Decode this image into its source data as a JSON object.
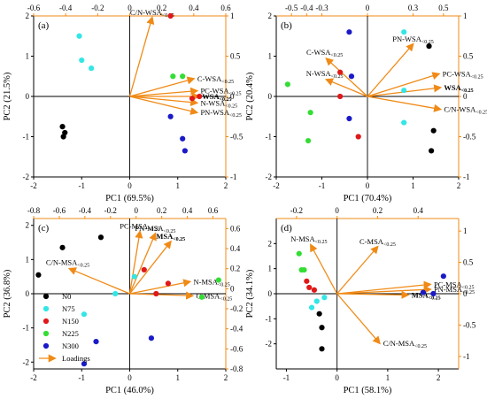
{
  "figure": {
    "colors": {
      "axis": "#000000",
      "loading": "#f08a16",
      "n0": "#000000",
      "n75": "#33e6e6",
      "n150": "#e01818",
      "n225": "#33dd33",
      "n300": "#1a1ac8"
    }
  },
  "chart_data": [
    {
      "type": "scatter",
      "panel_label": "(a)",
      "xlabel": "PC1 (69.5%)",
      "ylabel": "PC2 (21.5%)",
      "xlim": [
        -2,
        2
      ],
      "ylim": [
        -2,
        2
      ],
      "xticks": [
        -2,
        -1,
        0,
        1,
        2
      ],
      "yticks": [
        -2,
        -1,
        0,
        1,
        2
      ],
      "loading_xlim": [
        -0.6,
        0.6
      ],
      "loading_ylim": [
        -1.0,
        1.0
      ],
      "loading_xticks": [
        -0.6,
        -0.4,
        -0.2,
        0.0,
        0.2,
        0.4,
        0.6
      ],
      "loading_yticks": [
        -1.0,
        -0.5,
        0.0,
        0.5,
        1.0
      ],
      "series": [
        {
          "key": "n0",
          "points": [
            [
              -1.4,
              -0.75
            ],
            [
              -1.35,
              -0.9
            ],
            [
              -1.38,
              -1.0
            ]
          ]
        },
        {
          "key": "n75",
          "points": [
            [
              -1.05,
              1.5
            ],
            [
              -1.0,
              0.9
            ],
            [
              -0.8,
              0.7
            ]
          ]
        },
        {
          "key": "n150",
          "points": [
            [
              0.85,
              2.0
            ],
            [
              1.3,
              -0.05
            ],
            [
              1.45,
              0.0
            ]
          ]
        },
        {
          "key": "n225",
          "points": [
            [
              0.9,
              0.5
            ],
            [
              1.1,
              0.5
            ]
          ]
        },
        {
          "key": "n300",
          "points": [
            [
              0.85,
              -0.5
            ],
            [
              1.1,
              -1.05
            ],
            [
              1.15,
              -1.35
            ]
          ]
        }
      ],
      "loadings": [
        {
          "label": "C/N-WSA",
          "sub": "<0.25",
          "bold": false,
          "x": 0.14,
          "y": 0.98
        },
        {
          "label": "C-WSA",
          "sub": "<0.25",
          "bold": false,
          "x": 0.4,
          "y": 0.22
        },
        {
          "label": "PC-WSA",
          "sub": "<0.25",
          "bold": false,
          "x": 0.42,
          "y": 0.07
        },
        {
          "label": "WSA",
          "sub": "<0.25",
          "bold": true,
          "x": 0.43,
          "y": 0.0
        },
        {
          "label": "N-WSA",
          "sub": "<0.25",
          "bold": false,
          "x": 0.42,
          "y": -0.08
        },
        {
          "label": "PN-WSA",
          "sub": "<0.25",
          "bold": false,
          "x": 0.42,
          "y": -0.2
        }
      ]
    },
    {
      "type": "scatter",
      "panel_label": "(b)",
      "xlabel": "PC1 (70.4%)",
      "ylabel": "PC2 (20.4%)",
      "xlim": [
        -2,
        2
      ],
      "ylim": [
        -2,
        2
      ],
      "xticks": [
        -2,
        -1,
        0,
        1,
        2
      ],
      "yticks": [
        -2,
        -1,
        0,
        1,
        2
      ],
      "loading_xlim": [
        -0.6,
        0.6
      ],
      "loading_ylim": [
        -1.0,
        1.0
      ],
      "loading_xticks": [
        -0.5,
        -0.4,
        -0.3,
        0.0,
        0.3,
        0.5
      ],
      "loading_yticks": [
        -1.0,
        -0.5,
        0.0,
        0.5,
        1.0
      ],
      "series": [
        {
          "key": "n0",
          "points": [
            [
              1.35,
              1.25
            ],
            [
              1.45,
              -0.85
            ],
            [
              1.4,
              -1.35
            ]
          ]
        },
        {
          "key": "n75",
          "points": [
            [
              0.8,
              1.6
            ],
            [
              0.8,
              0.15
            ],
            [
              0.8,
              -0.65
            ]
          ]
        },
        {
          "key": "n150",
          "points": [
            [
              -0.6,
              0.6
            ],
            [
              -0.6,
              0.0
            ],
            [
              -0.2,
              -1.0
            ]
          ]
        },
        {
          "key": "n225",
          "points": [
            [
              -1.75,
              0.3
            ],
            [
              -1.25,
              -0.4
            ],
            [
              -1.3,
              -1.1
            ]
          ]
        },
        {
          "key": "n300",
          "points": [
            [
              -0.4,
              1.6
            ],
            [
              -0.35,
              0.5
            ],
            [
              -0.4,
              -0.55
            ]
          ]
        }
      ],
      "loadings": [
        {
          "label": "PN-WSA",
          "sub": "<0.25",
          "bold": false,
          "x": 0.3,
          "y": 0.65
        },
        {
          "label": "C-WSA",
          "sub": "<0.25",
          "bold": false,
          "x": -0.27,
          "y": 0.47
        },
        {
          "label": "N-WSA",
          "sub": "<0.25",
          "bold": false,
          "x": -0.27,
          "y": 0.21
        },
        {
          "label": "PC-WSA",
          "sub": "<0.25",
          "bold": false,
          "x": 0.47,
          "y": 0.28
        },
        {
          "label": "WSA",
          "sub": "<0.25",
          "bold": true,
          "x": 0.48,
          "y": 0.11
        },
        {
          "label": "C/N-WSA",
          "sub": "<0.25",
          "bold": false,
          "x": 0.48,
          "y": -0.16
        }
      ]
    },
    {
      "type": "scatter",
      "panel_label": "(c)",
      "xlabel": "PC1 (46.0%)",
      "ylabel": "PC2 (36.8%)",
      "xlim": [
        -2,
        2
      ],
      "ylim": [
        -2.2,
        2.2
      ],
      "xticks": [
        -2,
        -1,
        0,
        1,
        2
      ],
      "yticks": [
        -2,
        -1,
        0,
        1,
        2
      ],
      "loading_xlim": [
        -0.8,
        0.7
      ],
      "loading_ylim": [
        -0.8,
        0.7
      ],
      "loading_xticks": [
        -0.8,
        -0.6,
        -0.4,
        -0.2,
        0.0,
        0.2,
        0.4,
        0.6
      ],
      "loading_yticks": [
        -0.8,
        -0.6,
        -0.4,
        -0.2,
        0.0,
        0.2,
        0.4,
        0.6
      ],
      "legend_position": "bottom-left",
      "legend": [
        {
          "key": "n0",
          "label": "N0"
        },
        {
          "key": "n75",
          "label": "N75"
        },
        {
          "key": "n150",
          "label": "N150"
        },
        {
          "key": "n225",
          "label": "N225"
        },
        {
          "key": "n300",
          "label": "N300"
        },
        {
          "key": "loading",
          "label": "Loadings"
        }
      ],
      "series": [
        {
          "key": "n0",
          "points": [
            [
              -1.4,
              1.35
            ],
            [
              -0.6,
              1.65
            ],
            [
              -1.9,
              0.55
            ]
          ]
        },
        {
          "key": "n75",
          "points": [
            [
              0.1,
              0.5
            ],
            [
              -0.95,
              -0.6
            ],
            [
              -0.3,
              0.0
            ]
          ]
        },
        {
          "key": "n150",
          "points": [
            [
              0.3,
              0.7
            ],
            [
              0.8,
              0.3
            ],
            [
              0.55,
              0.0
            ]
          ]
        },
        {
          "key": "n225",
          "points": [
            [
              1.85,
              0.4
            ],
            [
              1.5,
              -0.1
            ]
          ]
        },
        {
          "key": "n300",
          "points": [
            [
              -0.7,
              -1.4
            ],
            [
              -0.95,
              -2.05
            ],
            [
              0.45,
              -1.3
            ]
          ]
        }
      ],
      "loadings": [
        {
          "label": "PC-MSA",
          "sub": "<0.25",
          "bold": false,
          "x": 0.03,
          "y": 0.57
        },
        {
          "label": "PN-MSA",
          "sub": "<0.25",
          "bold": false,
          "x": 0.15,
          "y": 0.55
        },
        {
          "label": "MSA",
          "sub": "<0.25",
          "bold": true,
          "x": 0.27,
          "y": 0.47
        },
        {
          "label": "C/N-MSA",
          "sub": "<0.25",
          "bold": false,
          "x": -0.52,
          "y": 0.2
        },
        {
          "label": "N-MSA",
          "sub": "<0.25",
          "bold": false,
          "x": 0.42,
          "y": 0.07
        },
        {
          "label": "C-MSA",
          "sub": "<0.25",
          "bold": false,
          "x": 0.44,
          "y": -0.07
        }
      ]
    },
    {
      "type": "scatter",
      "panel_label": "(d)",
      "xlabel": "PC1 (58.1%)",
      "ylabel": "PC2 (34.1%)",
      "xlim": [
        -1.2,
        2.4
      ],
      "ylim": [
        -3,
        3
      ],
      "xticks": [
        -1,
        0,
        1,
        2
      ],
      "yticks": [
        -2,
        -1,
        0,
        1,
        2
      ],
      "loading_xlim": [
        -0.3,
        0.6
      ],
      "loading_ylim": [
        -1.2,
        1.2
      ],
      "loading_xticks": [
        -0.2,
        0.0,
        0.2,
        0.4
      ],
      "loading_yticks": [
        -1.0,
        -0.5,
        0.0,
        0.5,
        1.0
      ],
      "series": [
        {
          "key": "n0",
          "points": [
            [
              -0.35,
              -0.8
            ],
            [
              -0.3,
              -1.35
            ],
            [
              -0.3,
              -2.2
            ]
          ]
        },
        {
          "key": "n75",
          "points": [
            [
              -0.25,
              -0.15
            ],
            [
              -0.4,
              -0.3
            ],
            [
              -0.5,
              -0.55
            ]
          ]
        },
        {
          "key": "n150",
          "points": [
            [
              -0.55,
              0.25
            ],
            [
              -0.45,
              0.15
            ],
            [
              -0.6,
              0.5
            ]
          ]
        },
        {
          "key": "n225",
          "points": [
            [
              -0.75,
              1.6
            ],
            [
              -0.7,
              0.95
            ],
            [
              -0.65,
              0.95
            ]
          ]
        },
        {
          "key": "n300",
          "points": [
            [
              2.1,
              0.7
            ],
            [
              1.9,
              0.0
            ],
            [
              1.7,
              0.05
            ]
          ]
        }
      ],
      "loadings": [
        {
          "label": "N-MSA",
          "sub": "<0.25",
          "bold": false,
          "x": -0.13,
          "y": 0.78
        },
        {
          "label": "C-MSA",
          "sub": "<0.25",
          "bold": false,
          "x": 0.2,
          "y": 0.75
        },
        {
          "label": "PC-MSA",
          "sub": "<0.25",
          "bold": false,
          "x": 0.46,
          "y": 0.15
        },
        {
          "label": "PN-MSA",
          "sub": "<0.25",
          "bold": false,
          "x": 0.46,
          "y": 0.07
        },
        {
          "label": "MSA",
          "sub": "<0.25",
          "bold": true,
          "x": 0.35,
          "y": -0.02
        },
        {
          "label": "C/N-MSA",
          "sub": "<0.25",
          "bold": false,
          "x": 0.21,
          "y": -0.79
        }
      ]
    }
  ]
}
